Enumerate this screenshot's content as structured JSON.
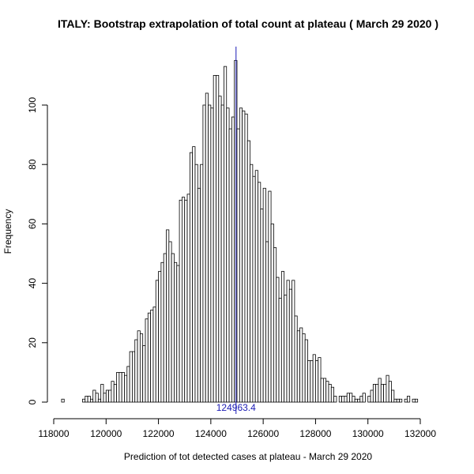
{
  "chart_data": {
    "type": "bar",
    "title": "ITALY: Bootstrap extrapolation of total count at plateau ( March 29 2020 )",
    "xlabel": "Prediction of tot detected cases at plateau - March 29 2020",
    "ylabel": "Frequency",
    "xlim": [
      118000,
      132000
    ],
    "ylim": [
      0,
      100
    ],
    "x_ticks": [
      "118000",
      "120000",
      "122000",
      "124000",
      "126000",
      "128000",
      "130000",
      "132000"
    ],
    "y_ticks": [
      "0",
      "20",
      "40",
      "60",
      "80",
      "100"
    ],
    "bin_start": 118300,
    "bin_width": 100,
    "counts": [
      1,
      0,
      0,
      0,
      0,
      0,
      0,
      0,
      1,
      2,
      2,
      1,
      4,
      3,
      1,
      6,
      3,
      4,
      4,
      7,
      6,
      10,
      10,
      10,
      9,
      12,
      17,
      17,
      21,
      24,
      23,
      19,
      28,
      30,
      31,
      32,
      41,
      44,
      47,
      50,
      58,
      54,
      50,
      47,
      46,
      68,
      69,
      68,
      70,
      84,
      86,
      80,
      72,
      80,
      100,
      104,
      100,
      99,
      110,
      110,
      103,
      100,
      113,
      99,
      92,
      96,
      115,
      92,
      99,
      98,
      97,
      88,
      80,
      76,
      78,
      74,
      65,
      72,
      54,
      71,
      60,
      52,
      42,
      35,
      44,
      36,
      41,
      38,
      41,
      29,
      24,
      25,
      23,
      21,
      14,
      14,
      16,
      14,
      15,
      8,
      8,
      7,
      6,
      5,
      2,
      0,
      2,
      2,
      2,
      3,
      3,
      2,
      1,
      1,
      2,
      3,
      0,
      2,
      4,
      6,
      6,
      8,
      6,
      6,
      9,
      7,
      4,
      1,
      1,
      1,
      0,
      1,
      2,
      0,
      1,
      1
    ],
    "marker_value": 124963.4,
    "marker_label": "124963.4",
    "marker_color": "#1a1ab4",
    "bar_fill": "#ffffff",
    "bar_stroke": "#000000"
  }
}
